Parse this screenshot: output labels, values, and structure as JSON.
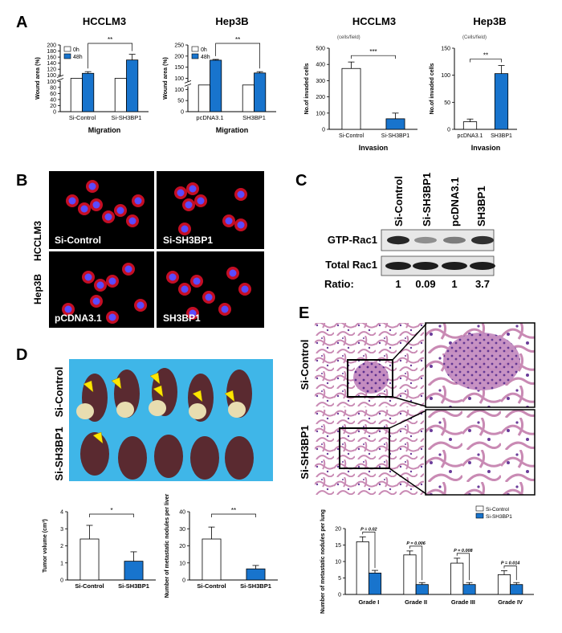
{
  "panels": {
    "a": {
      "letter": "A"
    },
    "b": {
      "letter": "B"
    },
    "c": {
      "letter": "C"
    },
    "d": {
      "letter": "D"
    },
    "e": {
      "letter": "E"
    }
  },
  "colors": {
    "blue": "#1874CD",
    "white": "#ffffff",
    "black": "#000000",
    "lung_pink": "#E9C6D9",
    "liver": "#5a2a30",
    "tray": "#3FB6E8",
    "nuclei": "#5A4BFF",
    "actin": "#E8102A",
    "arrow": "#FFE600"
  },
  "chart_data": [
    {
      "id": "a1",
      "type": "bar",
      "title": "HCCLM3",
      "ylabel": "Wound area (%)",
      "xlabel": "Migration",
      "categories": [
        "Si-Control",
        "Si-SH3BP1"
      ],
      "series": [
        {
          "name": "0h",
          "values": [
            100,
            100
          ],
          "errors": [
            0,
            0
          ]
        },
        {
          "name": "48h",
          "values": [
            115,
            155
          ],
          "errors": [
            5,
            17
          ]
        }
      ],
      "y_ticks": [
        "0",
        "20",
        "40",
        "60",
        "80",
        "100",
        "100",
        "120",
        "140",
        "160",
        "180",
        "200"
      ],
      "ylim": [
        0,
        200
      ],
      "axis_break": true,
      "legend": "top-left",
      "significance": [
        {
          "text": "**",
          "between": [
            "Si-Control 48h",
            "Si-SH3BP1 48h"
          ]
        }
      ]
    },
    {
      "id": "a2",
      "type": "bar",
      "title": "Hep3B",
      "ylabel": "Wound area (%)",
      "xlabel": "Migration",
      "categories": [
        "pcDNA3.1",
        "SH3BP1"
      ],
      "series": [
        {
          "name": "0h",
          "values": [
            100,
            100
          ],
          "errors": [
            0,
            0
          ]
        },
        {
          "name": "48h",
          "values": [
            193,
            145
          ],
          "errors": [
            3,
            5
          ]
        }
      ],
      "y_ticks": [
        "0",
        "50",
        "100",
        "100",
        "150",
        "200",
        "250"
      ],
      "ylim": [
        0,
        250
      ],
      "axis_break": true,
      "legend": "top-left",
      "significance": [
        {
          "text": "**",
          "between": [
            "pcDNA3.1 48h",
            "SH3BP1 48h"
          ]
        }
      ]
    },
    {
      "id": "a3",
      "type": "bar",
      "title": "HCCLM3",
      "subtitle": "(cells/field)",
      "ylabel": "No.of invaded cells",
      "xlabel": "Invasion",
      "categories": [
        "Si-Control",
        "Si-SH3BP1"
      ],
      "values": [
        375,
        65
      ],
      "errors": [
        40,
        35
      ],
      "bar_colors": [
        "#ffffff",
        "#1874CD"
      ],
      "y_ticks": [
        "0",
        "100",
        "200",
        "300",
        "400",
        "500"
      ],
      "ylim": [
        0,
        500
      ],
      "significance": [
        {
          "text": "***",
          "between": [
            "Si-Control",
            "Si-SH3BP1"
          ]
        }
      ]
    },
    {
      "id": "a4",
      "type": "bar",
      "title": "Hep3B",
      "subtitle": "(Cells/field)",
      "ylabel": "No.of invaded cells",
      "xlabel": "Invasion",
      "categories": [
        "pcDNA3.1",
        "SH3BP1"
      ],
      "values": [
        14,
        103
      ],
      "errors": [
        5,
        15
      ],
      "bar_colors": [
        "#ffffff",
        "#1874CD"
      ],
      "y_ticks": [
        "0",
        "50",
        "100",
        "150"
      ],
      "ylim": [
        0,
        150
      ],
      "significance": [
        {
          "text": "**",
          "between": [
            "pcDNA3.1",
            "SH3BP1"
          ]
        }
      ]
    },
    {
      "id": "d1",
      "type": "bar",
      "ylabel": "Tumor volume (cm³)",
      "xlabel": "",
      "categories": [
        "Si-Control",
        "Si-SH3BP1"
      ],
      "values": [
        2.4,
        1.1
      ],
      "errors": [
        0.8,
        0.55
      ],
      "bar_colors": [
        "#ffffff",
        "#1874CD"
      ],
      "y_ticks": [
        "0",
        "1",
        "2",
        "3",
        "4"
      ],
      "ylim": [
        0,
        4
      ],
      "significance": [
        {
          "text": "*",
          "between": [
            "Si-Control",
            "Si-SH3BP1"
          ]
        }
      ]
    },
    {
      "id": "d2",
      "type": "bar",
      "ylabel": "Number of metastatic nodules per liver",
      "xlabel": "",
      "categories": [
        "Si-Control",
        "Si-SH3BP1"
      ],
      "values": [
        24,
        6.5
      ],
      "errors": [
        7,
        2
      ],
      "bar_colors": [
        "#ffffff",
        "#1874CD"
      ],
      "y_ticks": [
        "0",
        "10",
        "20",
        "30",
        "40"
      ],
      "ylim": [
        0,
        40
      ],
      "significance": [
        {
          "text": "**",
          "between": [
            "Si-Control",
            "Si-SH3BP1"
          ]
        }
      ]
    },
    {
      "id": "e1",
      "type": "bar",
      "ylabel": "Number of metastatic nodules per lung",
      "xlabel": "",
      "categories": [
        "Grade I",
        "Grade  II",
        "Grade  III",
        "Grade  IV"
      ],
      "series": [
        {
          "name": "Si-Control",
          "values": [
            16,
            12,
            9.5,
            6
          ],
          "errors": [
            1.5,
            1.2,
            1.5,
            1.2
          ]
        },
        {
          "name": "Si-SH3BP1",
          "values": [
            6.5,
            3,
            3,
            3
          ],
          "errors": [
            0.8,
            0.6,
            0.6,
            0.6
          ]
        }
      ],
      "y_ticks": [
        "0",
        "5",
        "10",
        "15",
        "20"
      ],
      "ylim": [
        0,
        20
      ],
      "legend": "top-right",
      "significance": [
        {
          "text": "P = 0.02",
          "between": [
            "Grade I"
          ]
        },
        {
          "text": "P = 0.006",
          "between": [
            "Grade  II"
          ]
        },
        {
          "text": "P = 0.008",
          "between": [
            "Grade  III"
          ]
        },
        {
          "text": "P = 0.014",
          "between": [
            "Grade  IV"
          ]
        }
      ]
    }
  ],
  "panel_b": {
    "row_labels": [
      "HCCLM3",
      "Hep3B"
    ],
    "tiles": [
      {
        "label": "Si-Control"
      },
      {
        "label": "Si-SH3BP1"
      },
      {
        "label": "pCDNA3.1"
      },
      {
        "label": "SH3BP1"
      }
    ]
  },
  "panel_c": {
    "lanes": [
      "Si-Control",
      "Si-SH3BP1",
      "pcDNA3.1",
      "SH3BP1"
    ],
    "rows": [
      "GTP-Rac1",
      "Total Rac1"
    ],
    "ratio_label": "Ratio:",
    "ratios": [
      "1",
      "0.09",
      "1",
      "3.7"
    ],
    "gtp_band_intensity": [
      0.85,
      0.3,
      0.4,
      0.8
    ],
    "total_band_intensity": [
      0.9,
      0.9,
      0.9,
      0.9
    ]
  },
  "panel_d": {
    "row_labels": [
      "Si-Control",
      "Si-SH3BP1"
    ]
  },
  "panel_e": {
    "row_labels": [
      "Si-Control",
      "Si-SH3BP1"
    ]
  }
}
